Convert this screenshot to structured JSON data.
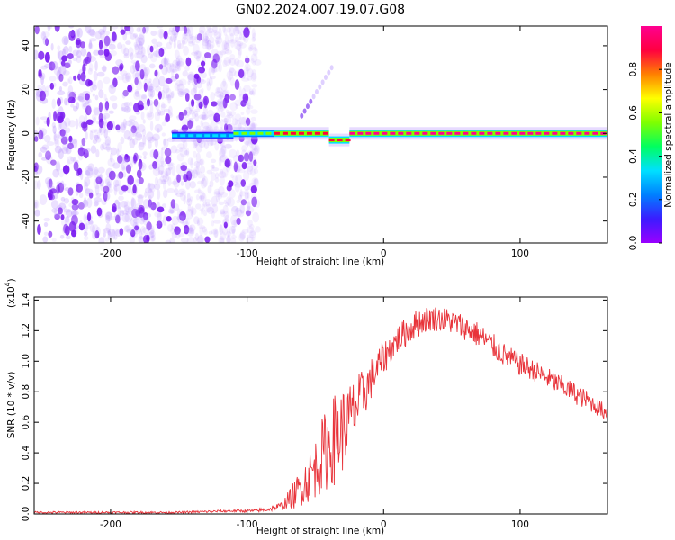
{
  "title": "GN02.2024.007.19.07.G08",
  "colors": {
    "noise": "#7b22ff",
    "line_core": "#e8233a",
    "snr_line": "#e8333a",
    "axis": "#000000"
  },
  "chart_data": [
    {
      "type": "heatmap",
      "xlabel": "Height of straight line (km)",
      "ylabel": "Frequency (Hz)",
      "xlim": [
        -256,
        164
      ],
      "ylim": [
        -50,
        49
      ],
      "xticks": [
        -200,
        -100,
        0,
        100
      ],
      "xtick_labels": [
        "-200",
        "-100",
        "0",
        "100"
      ],
      "yticks": [
        -40,
        -20,
        0,
        20,
        40
      ],
      "ytick_labels": [
        "-40",
        "-20",
        "0",
        "20",
        "40"
      ],
      "colorbar": {
        "label": "Normalized spectral amplitude",
        "range": [
          0.0,
          1.0
        ],
        "ticks": [
          0.0,
          0.2,
          0.4,
          0.6,
          0.8
        ],
        "tick_labels": [
          "0.0",
          "0.2",
          "0.4",
          "0.6",
          "0.8"
        ],
        "stops": [
          "#9a00ff",
          "#3b1cff",
          "#0080ff",
          "#00e0ff",
          "#00ff60",
          "#80ff00",
          "#ffff00",
          "#ff8000",
          "#ff0040",
          "#ff0090"
        ]
      },
      "noise_region_x": [
        -256,
        -100
      ],
      "signal": {
        "x_start": -155,
        "x_end": 164,
        "frequency": 0,
        "segments": [
          {
            "x": [
              -155,
              -110
            ],
            "amp": 0.35,
            "freq": -1
          },
          {
            "x": [
              -110,
              -80
            ],
            "amp": 0.6,
            "freq": 0
          },
          {
            "x": [
              -80,
              -40
            ],
            "amp": 0.85,
            "freq": 0
          },
          {
            "x": [
              -40,
              -25
            ],
            "amp": 0.9,
            "freq": -3
          },
          {
            "x": [
              -25,
              164
            ],
            "amp": 0.95,
            "freq": 0
          }
        ],
        "spur": {
          "x": [
            -60,
            -38
          ],
          "freq": [
            8,
            30
          ]
        }
      }
    },
    {
      "type": "line",
      "xlabel": "Height of straight line (km)",
      "ylabel": "SNR (10 * v/v)",
      "scale_note": "(x10",
      "scale_exp": "4",
      "scale_close": ")",
      "xlim": [
        -256,
        164
      ],
      "ylim": [
        0.0,
        1.42
      ],
      "xticks": [
        -200,
        -100,
        0,
        100
      ],
      "xtick_labels": [
        "-200",
        "-100",
        "0",
        "100"
      ],
      "yticks": [
        0.0,
        0.2,
        0.4,
        0.6,
        0.8,
        1.0,
        1.2,
        1.4
      ],
      "ytick_labels": [
        "0.0",
        "0.2",
        "0.4",
        "0.6",
        "0.8",
        "1.0",
        "1.2",
        "1.4"
      ],
      "series": [
        {
          "x": [
            -256,
            -200,
            -150,
            -110,
            -95,
            -85,
            -75,
            -70,
            -65,
            -60,
            -55,
            -50,
            -45,
            -40,
            -35,
            -30,
            -25,
            -20,
            -15,
            -10,
            -5,
            0,
            5,
            10,
            15,
            20,
            25,
            30,
            35,
            40,
            45,
            50,
            55,
            60,
            70,
            80,
            90,
            100,
            110,
            120,
            130,
            140,
            150,
            160,
            164
          ],
          "y": [
            0.01,
            0.01,
            0.01,
            0.02,
            0.02,
            0.03,
            0.05,
            0.09,
            0.13,
            0.18,
            0.24,
            0.3,
            0.38,
            0.45,
            0.5,
            0.55,
            0.62,
            0.7,
            0.78,
            0.87,
            0.95,
            1.02,
            1.08,
            1.14,
            1.18,
            1.22,
            1.25,
            1.27,
            1.28,
            1.28,
            1.27,
            1.26,
            1.24,
            1.22,
            1.17,
            1.1,
            1.03,
            0.98,
            0.94,
            0.89,
            0.84,
            0.79,
            0.74,
            0.68,
            0.66
          ],
          "noise": [
            0.005,
            0.005,
            0.005,
            0.006,
            0.008,
            0.01,
            0.02,
            0.04,
            0.07,
            0.09,
            0.12,
            0.14,
            0.18,
            0.2,
            0.22,
            0.2,
            0.17,
            0.15,
            0.12,
            0.1,
            0.09,
            0.08,
            0.07,
            0.07,
            0.07,
            0.07,
            0.07,
            0.06,
            0.06,
            0.06,
            0.06,
            0.06,
            0.06,
            0.06,
            0.06,
            0.06,
            0.055,
            0.055,
            0.05,
            0.05,
            0.05,
            0.05,
            0.045,
            0.04,
            0.04
          ]
        }
      ]
    }
  ]
}
